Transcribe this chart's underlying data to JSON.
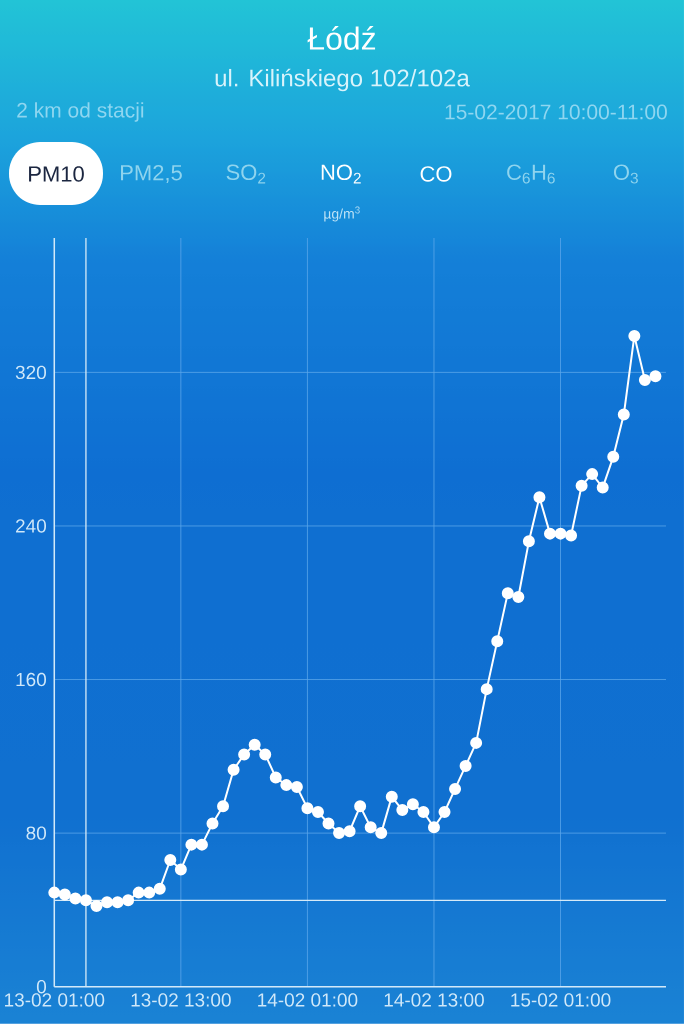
{
  "chart_data": {
    "type": "line",
    "title": "Łódź",
    "subtitle": "ul. Kilińskiego 102/102a",
    "ylabel": "µg/m$^{3}$",
    "annotations": [
      "2 km od stacji",
      "15-02-2017 10:00-11:00",
      "PM10",
      "PM2,5",
      "SO$_{2}$",
      "NO$_{2}$",
      "CO",
      "C$_{6}$H$_{6}$",
      "O$_{3}$"
    ],
    "x": [
      "2017-02-13T01:00",
      "2017-02-13T02:00",
      "2017-02-13T03:00",
      "2017-02-13T04:00",
      "2017-02-13T05:00",
      "2017-02-13T06:00",
      "2017-02-13T07:00",
      "2017-02-13T08:00",
      "2017-02-13T09:00",
      "2017-02-13T10:00",
      "2017-02-13T11:00",
      "2017-02-13T12:00",
      "2017-02-13T13:00",
      "2017-02-13T14:00",
      "2017-02-13T15:00",
      "2017-02-13T16:00",
      "2017-02-13T17:00",
      "2017-02-13T18:00",
      "2017-02-13T19:00",
      "2017-02-13T20:00",
      "2017-02-13T21:00",
      "2017-02-13T22:00",
      "2017-02-13T23:00",
      "2017-02-14T00:00",
      "2017-02-14T01:00",
      "2017-02-14T02:00",
      "2017-02-14T03:00",
      "2017-02-14T04:00",
      "2017-02-14T05:00",
      "2017-02-14T06:00",
      "2017-02-14T07:00",
      "2017-02-14T08:00",
      "2017-02-14T09:00",
      "2017-02-14T10:00",
      "2017-02-14T11:00",
      "2017-02-14T12:00",
      "2017-02-14T13:00",
      "2017-02-14T14:00",
      "2017-02-14T15:00",
      "2017-02-14T16:00",
      "2017-02-14T17:00",
      "2017-02-14T18:00",
      "2017-02-14T19:00",
      "2017-02-14T20:00",
      "2017-02-14T21:00",
      "2017-02-14T22:00",
      "2017-02-14T23:00",
      "2017-02-15T00:00",
      "2017-02-15T01:00",
      "2017-02-15T02:00",
      "2017-02-15T03:00",
      "2017-02-15T04:00",
      "2017-02-15T05:00",
      "2017-02-15T06:00",
      "2017-02-15T07:00",
      "2017-02-15T08:00",
      "2017-02-15T09:00",
      "2017-02-15T10:00"
    ],
    "values": [
      49,
      48,
      46,
      45,
      42,
      44,
      44,
      45,
      49,
      49,
      51,
      66,
      61,
      74,
      74,
      85,
      94,
      113,
      121,
      126,
      121,
      109,
      105,
      104,
      93,
      91,
      85,
      80,
      81,
      94,
      83,
      80,
      99,
      92,
      95,
      91,
      83,
      91,
      103,
      115,
      127,
      155,
      180,
      205,
      203,
      232,
      255,
      236,
      236,
      235,
      261,
      267,
      260,
      276,
      298,
      339,
      316,
      318
    ],
    "color": "#ffffff",
    "xlim": [
      "2017-02-13T01:00",
      "2017-02-15T11:00"
    ],
    "xticks": [
      {
        "value": "2017-02-13T01:00",
        "label": "13-02 01:00"
      },
      {
        "value": "2017-02-13T13:00",
        "label": "13-02 13:00"
      },
      {
        "value": "2017-02-14T01:00",
        "label": "14-02 01:00"
      },
      {
        "value": "2017-02-14T13:00",
        "label": "14-02 13:00"
      },
      {
        "value": "2017-02-15T01:00",
        "label": "15-02 01:00"
      }
    ],
    "ylim": [
      0,
      390
    ],
    "yticks": [
      0,
      80,
      160,
      240,
      320
    ],
    "grid": true,
    "marker": "circle",
    "line_style": "solid",
    "ref_lines": [
      {
        "axis": "x",
        "value": "2017-02-13T04:00",
        "color": "#d6eaf8"
      },
      {
        "axis": "y",
        "value": 45,
        "color": "#d6eaf8"
      }
    ]
  }
}
